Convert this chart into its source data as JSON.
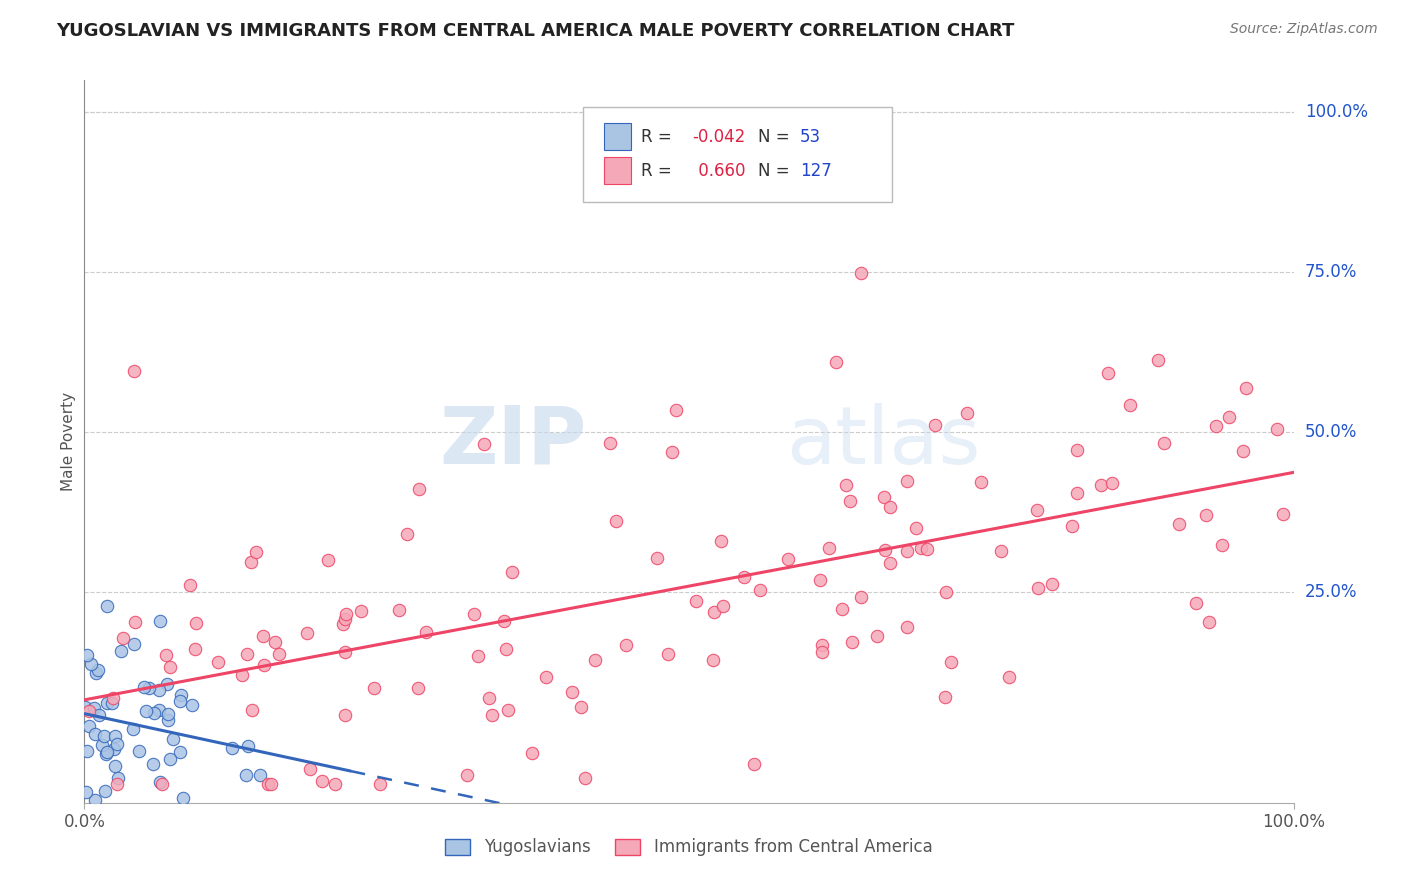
{
  "title": "YUGOSLAVIAN VS IMMIGRANTS FROM CENTRAL AMERICA MALE POVERTY CORRELATION CHART",
  "source": "Source: ZipAtlas.com",
  "xlabel": "",
  "ylabel": "Male Poverty",
  "xlim": [
    0.0,
    1.0
  ],
  "ylim": [
    -0.08,
    1.05
  ],
  "y_tick_positions": [
    1.0,
    0.75,
    0.5,
    0.25
  ],
  "y_tick_labels": [
    "100.0%",
    "75.0%",
    "50.0%",
    "25.0%"
  ],
  "legend_label1": "Yugoslavians",
  "legend_label2": "Immigrants from Central America",
  "R1": -0.042,
  "N1": 53,
  "R2": 0.66,
  "N2": 127,
  "color_blue": "#aac4e4",
  "color_pink": "#f5a8b8",
  "line_blue": "#3366bb",
  "line_pink": "#ee4466",
  "background_color": "#ffffff",
  "watermark_zip": "ZIP",
  "watermark_atlas": "atlas",
  "grid_color": "#cccccc",
  "title_color": "#222222",
  "label_color": "#555555",
  "legend_r_color": "#dd2244",
  "legend_n_color": "#2244cc",
  "seed": 12345
}
